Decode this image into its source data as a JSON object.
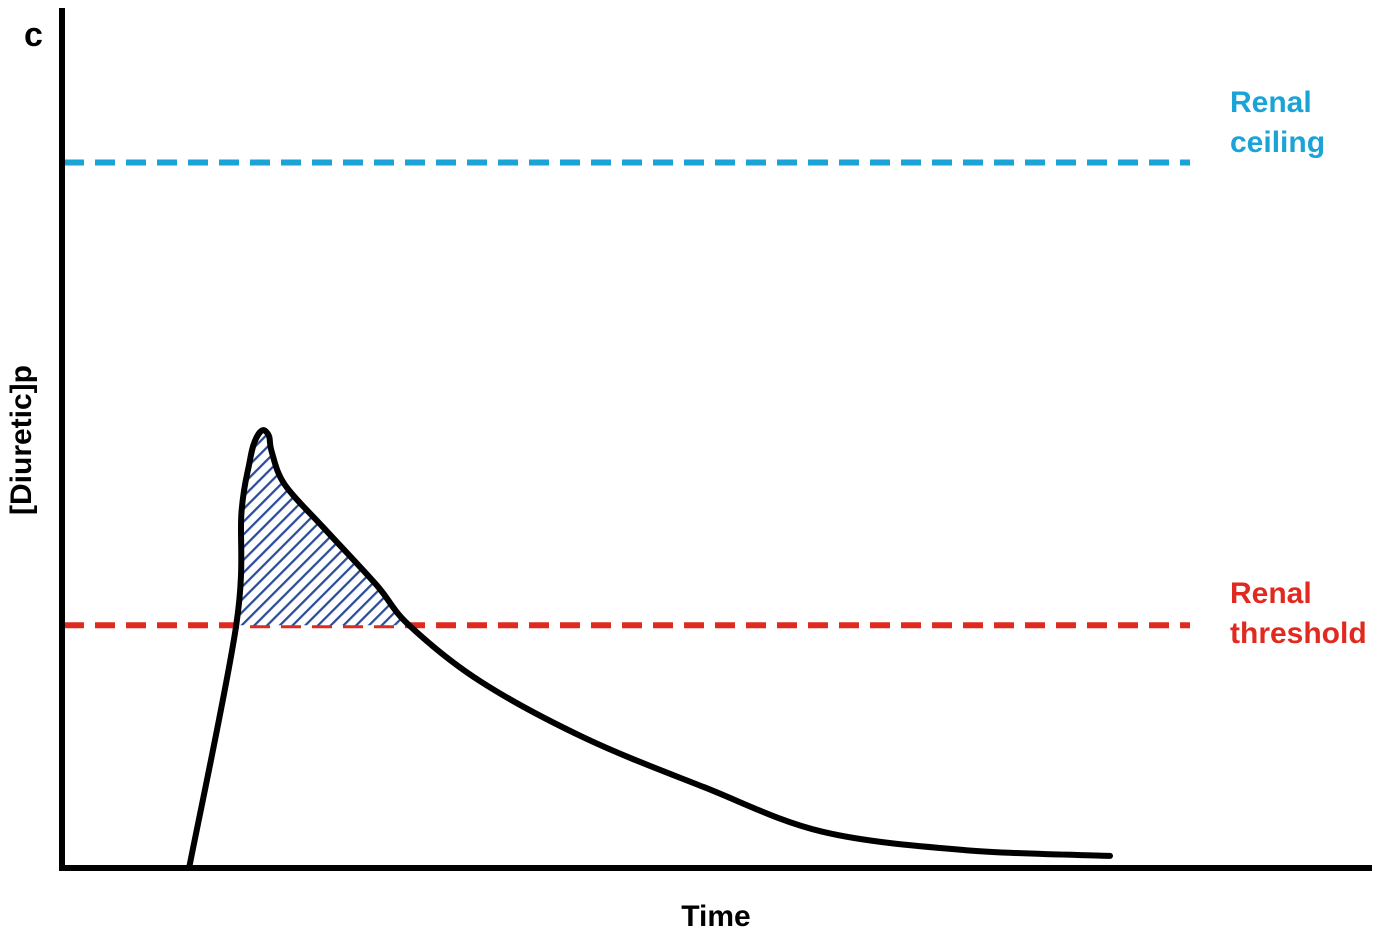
{
  "panel_label": "c",
  "chart_data": {
    "type": "line",
    "title": "",
    "xlabel": "Time",
    "ylabel": "[Diuretic]p",
    "axes": {
      "x_ticks": "none",
      "y_ticks": "none"
    },
    "reference_lines": [
      {
        "name": "Renal ceiling",
        "label_lines": [
          "Renal",
          "ceiling"
        ],
        "relative_level": 0.872,
        "color": "#1aa3d6",
        "style": "dashed"
      },
      {
        "name": "Renal threshold",
        "label_lines": [
          "Renal",
          "threshold"
        ],
        "relative_level": 0.3,
        "color": "#e02a20",
        "style": "dashed"
      }
    ],
    "curve": {
      "description_points": [
        {
          "t": 0.097,
          "c": 0.0
        },
        {
          "t": 0.133,
          "c": 0.3
        },
        {
          "t": 0.137,
          "c": 0.44
        },
        {
          "t": 0.143,
          "c": 0.5
        },
        {
          "t": 0.147,
          "c": 0.527
        },
        {
          "t": 0.153,
          "c": 0.541
        },
        {
          "t": 0.158,
          "c": 0.534
        },
        {
          "t": 0.16,
          "c": 0.515
        },
        {
          "t": 0.17,
          "c": 0.474
        },
        {
          "t": 0.2,
          "c": 0.42
        },
        {
          "t": 0.24,
          "c": 0.35
        },
        {
          "t": 0.265,
          "c": 0.3
        },
        {
          "t": 0.32,
          "c": 0.23
        },
        {
          "t": 0.4,
          "c": 0.16
        },
        {
          "t": 0.49,
          "c": 0.1
        },
        {
          "t": 0.58,
          "c": 0.045
        },
        {
          "t": 0.69,
          "c": 0.022
        },
        {
          "t": 0.8,
          "c": 0.015
        }
      ],
      "color": "#000000"
    },
    "shaded_region": {
      "description": "area of curve above renal threshold",
      "fill_pattern": "diagonal-hatch",
      "color": "#2b4c9a"
    },
    "grid": false,
    "legend": "none"
  }
}
